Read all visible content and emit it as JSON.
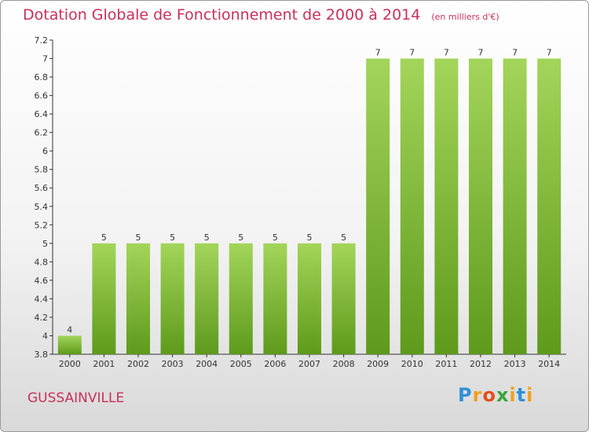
{
  "header": {
    "title": "Dotation Globale de Fonctionnement de 2000 à 2014",
    "unit": "(en milliers d'€)"
  },
  "footer": {
    "city": "GUSSAINVILLE",
    "logo": "Proxiti"
  },
  "colors": {
    "bar_top": "#a3d55a",
    "bar_bottom": "#5e9a1c",
    "accent": "#c8305a"
  },
  "chart_data": {
    "type": "bar",
    "title": "Dotation Globale de Fonctionnement de 2000 à 2014",
    "subtitle": "(en milliers d'€)",
    "xlabel": "",
    "ylabel": "",
    "categories": [
      "2000",
      "2001",
      "2002",
      "2003",
      "2004",
      "2005",
      "2006",
      "2007",
      "2008",
      "2009",
      "2010",
      "2011",
      "2012",
      "2013",
      "2014"
    ],
    "values": [
      4,
      5,
      5,
      5,
      5,
      5,
      5,
      5,
      5,
      7,
      7,
      7,
      7,
      7,
      7
    ],
    "data_labels": [
      "4",
      "5",
      "5",
      "5",
      "5",
      "5",
      "5",
      "5",
      "5",
      "7",
      "7",
      "7",
      "7",
      "7",
      "7"
    ],
    "ylim": [
      3.8,
      7.2
    ],
    "yticks": [
      3.8,
      4,
      4.2,
      4.4,
      4.6,
      4.8,
      5,
      5.2,
      5.4,
      5.6,
      5.8,
      6,
      6.2,
      6.4,
      6.6,
      6.8,
      7,
      7.2
    ],
    "ytick_labels": [
      "3.8",
      "4",
      "4.2",
      "4.4",
      "4.6",
      "4.8",
      "5",
      "5.2",
      "5.4",
      "5.6",
      "5.8",
      "6",
      "6.2",
      "6.4",
      "6.6",
      "6.8",
      "7",
      "7.2"
    ],
    "grid": false,
    "legend": "none"
  }
}
